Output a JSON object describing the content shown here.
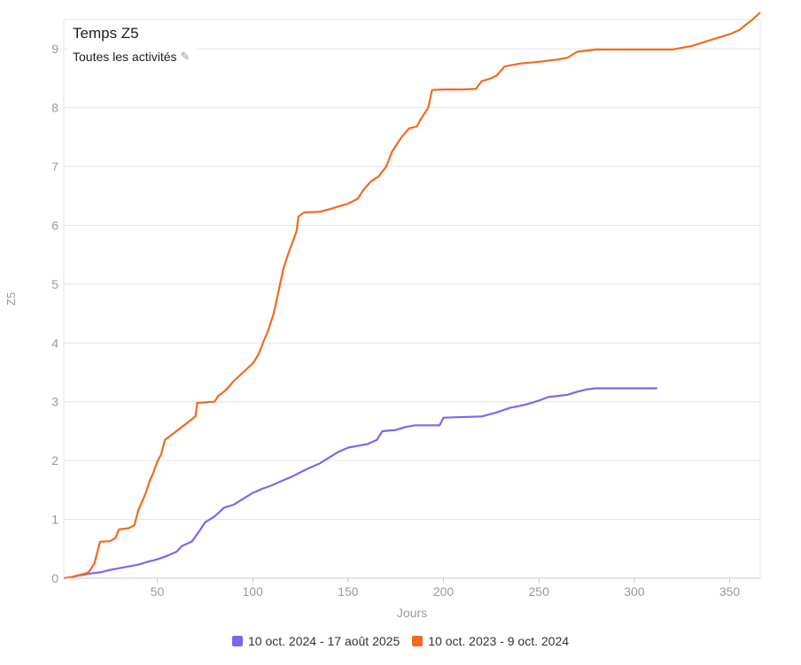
{
  "header": {
    "title": "Temps Z5",
    "subtitle": "Toutes les activités",
    "edit_icon": "pencil-icon"
  },
  "chart_data": {
    "type": "line",
    "xlabel": "Jours",
    "ylabel": "Z5",
    "xlim": [
      1,
      366
    ],
    "ylim": [
      0,
      9.5
    ],
    "x_ticks": [
      50,
      100,
      150,
      200,
      250,
      300,
      350
    ],
    "y_ticks": [
      0,
      1,
      2,
      3,
      4,
      5,
      6,
      7,
      8,
      9
    ],
    "grid": true,
    "legend_position": "bottom",
    "series": [
      {
        "name": "10 oct. 2024 - 17 août 2025",
        "color": "#7b68ee",
        "points": [
          [
            1,
            0
          ],
          [
            5,
            0.02
          ],
          [
            10,
            0.05
          ],
          [
            15,
            0.08
          ],
          [
            20,
            0.1
          ],
          [
            25,
            0.14
          ],
          [
            30,
            0.17
          ],
          [
            35,
            0.2
          ],
          [
            40,
            0.23
          ],
          [
            45,
            0.28
          ],
          [
            50,
            0.32
          ],
          [
            55,
            0.38
          ],
          [
            60,
            0.45
          ],
          [
            63,
            0.55
          ],
          [
            68,
            0.62
          ],
          [
            72,
            0.8
          ],
          [
            75,
            0.95
          ],
          [
            80,
            1.05
          ],
          [
            85,
            1.2
          ],
          [
            90,
            1.25
          ],
          [
            95,
            1.35
          ],
          [
            100,
            1.45
          ],
          [
            105,
            1.52
          ],
          [
            110,
            1.58
          ],
          [
            115,
            1.65
          ],
          [
            120,
            1.72
          ],
          [
            125,
            1.8
          ],
          [
            130,
            1.88
          ],
          [
            135,
            1.95
          ],
          [
            140,
            2.05
          ],
          [
            145,
            2.15
          ],
          [
            150,
            2.22
          ],
          [
            155,
            2.25
          ],
          [
            160,
            2.28
          ],
          [
            165,
            2.35
          ],
          [
            168,
            2.5
          ],
          [
            175,
            2.52
          ],
          [
            180,
            2.57
          ],
          [
            185,
            2.6
          ],
          [
            198,
            2.6
          ],
          [
            200,
            2.73
          ],
          [
            220,
            2.75
          ],
          [
            228,
            2.82
          ],
          [
            235,
            2.9
          ],
          [
            240,
            2.93
          ],
          [
            245,
            2.97
          ],
          [
            250,
            3.02
          ],
          [
            255,
            3.08
          ],
          [
            260,
            3.1
          ],
          [
            265,
            3.12
          ],
          [
            270,
            3.17
          ],
          [
            275,
            3.21
          ],
          [
            280,
            3.23
          ],
          [
            290,
            3.23
          ],
          [
            312,
            3.23
          ]
        ]
      },
      {
        "name": "10 oct. 2023 - 9 oct. 2024",
        "color": "#f26b1d",
        "points": [
          [
            1,
            0
          ],
          [
            5,
            0.02
          ],
          [
            10,
            0.06
          ],
          [
            14,
            0.1
          ],
          [
            17,
            0.25
          ],
          [
            20,
            0.62
          ],
          [
            25,
            0.63
          ],
          [
            28,
            0.68
          ],
          [
            30,
            0.83
          ],
          [
            35,
            0.85
          ],
          [
            38,
            0.9
          ],
          [
            40,
            1.15
          ],
          [
            42,
            1.3
          ],
          [
            44,
            1.45
          ],
          [
            46,
            1.65
          ],
          [
            48,
            1.8
          ],
          [
            50,
            1.98
          ],
          [
            52,
            2.1
          ],
          [
            54,
            2.35
          ],
          [
            58,
            2.45
          ],
          [
            62,
            2.55
          ],
          [
            66,
            2.65
          ],
          [
            70,
            2.75
          ],
          [
            71,
            2.98
          ],
          [
            75,
            2.99
          ],
          [
            80,
            3.0
          ],
          [
            82,
            3.1
          ],
          [
            86,
            3.2
          ],
          [
            90,
            3.35
          ],
          [
            95,
            3.5
          ],
          [
            100,
            3.65
          ],
          [
            103,
            3.8
          ],
          [
            106,
            4.05
          ],
          [
            108,
            4.2
          ],
          [
            111,
            4.5
          ],
          [
            113,
            4.8
          ],
          [
            116,
            5.25
          ],
          [
            119,
            5.55
          ],
          [
            123,
            5.9
          ],
          [
            124,
            6.15
          ],
          [
            127,
            6.22
          ],
          [
            135,
            6.23
          ],
          [
            140,
            6.27
          ],
          [
            145,
            6.32
          ],
          [
            150,
            6.37
          ],
          [
            155,
            6.45
          ],
          [
            158,
            6.6
          ],
          [
            162,
            6.75
          ],
          [
            166,
            6.83
          ],
          [
            170,
            7.0
          ],
          [
            173,
            7.25
          ],
          [
            178,
            7.5
          ],
          [
            182,
            7.65
          ],
          [
            186,
            7.68
          ],
          [
            188,
            7.8
          ],
          [
            192,
            8.0
          ],
          [
            194,
            8.3
          ],
          [
            200,
            8.31
          ],
          [
            210,
            8.31
          ],
          [
            217,
            8.32
          ],
          [
            220,
            8.45
          ],
          [
            225,
            8.5
          ],
          [
            228,
            8.55
          ],
          [
            232,
            8.7
          ],
          [
            240,
            8.75
          ],
          [
            250,
            8.78
          ],
          [
            260,
            8.82
          ],
          [
            265,
            8.85
          ],
          [
            270,
            8.95
          ],
          [
            280,
            8.99
          ],
          [
            300,
            8.99
          ],
          [
            320,
            8.99
          ],
          [
            330,
            9.05
          ],
          [
            340,
            9.15
          ],
          [
            345,
            9.2
          ],
          [
            350,
            9.25
          ],
          [
            355,
            9.32
          ],
          [
            358,
            9.4
          ],
          [
            362,
            9.5
          ],
          [
            366,
            9.62
          ]
        ]
      }
    ]
  }
}
